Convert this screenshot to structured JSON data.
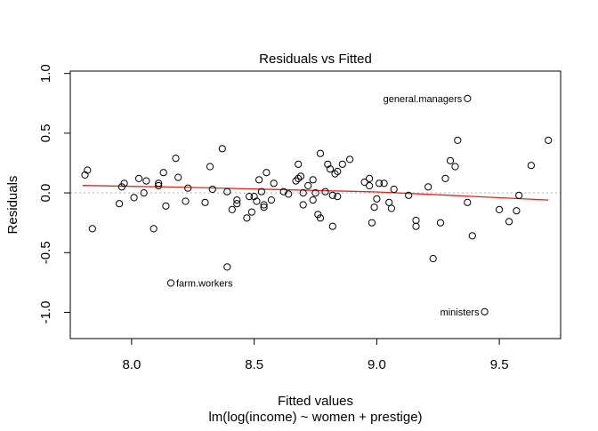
{
  "chart_data": {
    "type": "scatter",
    "title": "Residuals vs Fitted",
    "xlabel": "Fitted values",
    "sublabel": "lm(log(income) ~ women + prestige)",
    "ylabel": "Residuals",
    "xlim": [
      7.75,
      9.75
    ],
    "ylim": [
      -1.22,
      1.02
    ],
    "x_ticks": [
      {
        "value": 8.0,
        "label": "8.0"
      },
      {
        "value": 8.5,
        "label": "8.5"
      },
      {
        "value": 9.0,
        "label": "9.0"
      },
      {
        "value": 9.5,
        "label": "9.5"
      }
    ],
    "y_ticks": [
      {
        "value": -1.0,
        "label": "-1.0"
      },
      {
        "value": -0.5,
        "label": "-0.5"
      },
      {
        "value": 0.0,
        "label": "0.0"
      },
      {
        "value": 0.5,
        "label": "0.5"
      },
      {
        "value": 1.0,
        "label": "1.0"
      }
    ],
    "reference_line": {
      "y": 0,
      "style": "dotted",
      "color": "#b8b8b8"
    },
    "smooth_line": {
      "color": "#e8231b",
      "points": [
        [
          7.8,
          0.062
        ],
        [
          8.2,
          0.048
        ],
        [
          8.6,
          0.028
        ],
        [
          9.0,
          0.008
        ],
        [
          9.4,
          -0.03
        ],
        [
          9.7,
          -0.06
        ]
      ]
    },
    "labeled_points": [
      {
        "x": 9.37,
        "y": 0.79,
        "label": "general.managers",
        "side": "left"
      },
      {
        "x": 8.16,
        "y": -0.755,
        "label": "farm.workers",
        "side": "right"
      },
      {
        "x": 9.44,
        "y": -0.995,
        "label": "ministers",
        "side": "left"
      }
    ],
    "points": [
      [
        7.81,
        0.15
      ],
      [
        7.82,
        0.19
      ],
      [
        7.84,
        -0.3
      ],
      [
        7.95,
        -0.09
      ],
      [
        7.96,
        0.05
      ],
      [
        7.97,
        0.08
      ],
      [
        8.01,
        -0.04
      ],
      [
        8.03,
        0.12
      ],
      [
        8.05,
        0.0
      ],
      [
        8.06,
        0.1
      ],
      [
        8.09,
        -0.3
      ],
      [
        8.11,
        0.08
      ],
      [
        8.11,
        0.06
      ],
      [
        8.13,
        0.17
      ],
      [
        8.14,
        -0.11
      ],
      [
        8.18,
        0.29
      ],
      [
        8.19,
        0.13
      ],
      [
        8.22,
        -0.07
      ],
      [
        8.23,
        0.04
      ],
      [
        8.3,
        -0.08
      ],
      [
        8.32,
        0.22
      ],
      [
        8.33,
        0.03
      ],
      [
        8.37,
        0.37
      ],
      [
        8.39,
        0.01
      ],
      [
        8.41,
        -0.14
      ],
      [
        8.43,
        -0.06
      ],
      [
        8.43,
        -0.09
      ],
      [
        8.47,
        -0.21
      ],
      [
        8.48,
        -0.03
      ],
      [
        8.49,
        -0.16
      ],
      [
        8.5,
        -0.03
      ],
      [
        8.51,
        -0.07
      ],
      [
        8.52,
        0.11
      ],
      [
        8.53,
        0.01
      ],
      [
        8.54,
        -0.1
      ],
      [
        8.54,
        -0.12
      ],
      [
        8.55,
        0.17
      ],
      [
        8.57,
        -0.06
      ],
      [
        8.58,
        0.08
      ],
      [
        8.62,
        0.01
      ],
      [
        8.64,
        -0.01
      ],
      [
        8.67,
        0.1
      ],
      [
        8.68,
        0.24
      ],
      [
        8.68,
        0.12
      ],
      [
        8.69,
        0.14
      ],
      [
        8.7,
        0.0
      ],
      [
        8.7,
        -0.1
      ],
      [
        8.72,
        0.06
      ],
      [
        8.74,
        0.11
      ],
      [
        8.74,
        -0.06
      ],
      [
        8.75,
        0.0
      ],
      [
        8.76,
        -0.18
      ],
      [
        8.77,
        -0.21
      ],
      [
        8.77,
        0.33
      ],
      [
        8.79,
        0.01
      ],
      [
        8.8,
        0.24
      ],
      [
        8.81,
        0.2
      ],
      [
        8.82,
        -0.28
      ],
      [
        8.82,
        -0.02
      ],
      [
        8.83,
        0.16
      ],
      [
        8.84,
        -0.03
      ],
      [
        8.84,
        0.18
      ],
      [
        8.86,
        0.24
      ],
      [
        8.89,
        0.28
      ],
      [
        8.95,
        0.09
      ],
      [
        8.97,
        0.12
      ],
      [
        8.97,
        0.06
      ],
      [
        8.98,
        -0.25
      ],
      [
        8.99,
        -0.12
      ],
      [
        9.0,
        -0.05
      ],
      [
        9.01,
        0.08
      ],
      [
        9.03,
        0.08
      ],
      [
        9.05,
        -0.08
      ],
      [
        9.06,
        -0.13
      ],
      [
        9.07,
        0.03
      ],
      [
        9.13,
        -0.02
      ],
      [
        9.16,
        -0.23
      ],
      [
        9.16,
        -0.28
      ],
      [
        9.21,
        0.05
      ],
      [
        9.23,
        -0.55
      ],
      [
        9.26,
        -0.25
      ],
      [
        9.28,
        0.12
      ],
      [
        9.3,
        0.27
      ],
      [
        9.32,
        0.22
      ],
      [
        9.33,
        0.44
      ],
      [
        9.37,
        -0.08
      ],
      [
        9.39,
        -0.36
      ],
      [
        9.5,
        -0.14
      ],
      [
        9.54,
        -0.24
      ],
      [
        9.57,
        -0.15
      ],
      [
        9.58,
        -0.02
      ],
      [
        9.63,
        0.23
      ],
      [
        9.7,
        0.44
      ],
      [
        9.37,
        0.79
      ],
      [
        8.16,
        -0.755
      ],
      [
        9.44,
        -0.995
      ],
      [
        8.39,
        -0.62
      ]
    ]
  }
}
